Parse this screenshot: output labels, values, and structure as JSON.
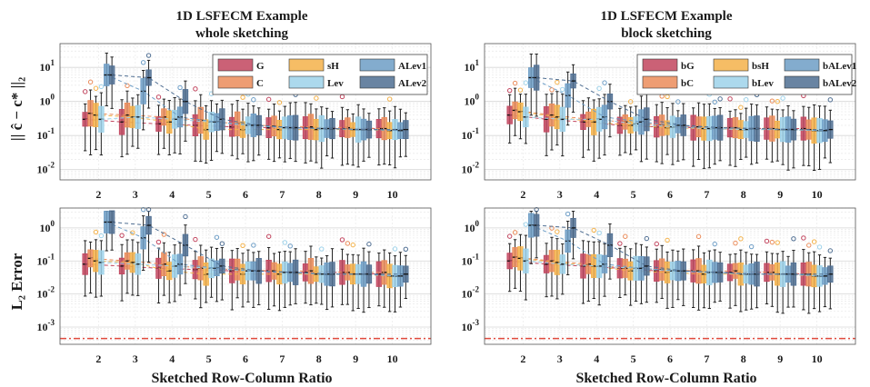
{
  "figure_title": "1D  LSFECM  Example",
  "colors": {
    "G": "#c2455e",
    "C": "#eb8c5a",
    "sH": "#f4b24a",
    "Lev": "#9dd2ea",
    "ALev1": "#6d9dc6",
    "ALev2": "#4f6e92",
    "reference_line": "#e04a3c"
  },
  "chart_data": [
    {
      "type": "box",
      "panel": "top-left",
      "title_line1": "1D  LSFECM  Example",
      "title_line2": "whole sketching",
      "ylabel": "|| ĉ − c* ||₂",
      "xlabel": "",
      "yscale": "log",
      "ylim": [
        0.005,
        50
      ],
      "x_ticks": [
        "2",
        "3",
        "4",
        "5",
        "6",
        "7",
        "8",
        "9",
        "10"
      ],
      "y_ticks": [
        "10^{-2}",
        "10^{-1}",
        "10^{0}",
        "10^{1}"
      ],
      "legend": [
        "G",
        "C",
        "sH",
        "Lev",
        "ALev1",
        "ALev2"
      ],
      "legend_position": "top-right",
      "grid": true,
      "series": [
        {
          "name": "G",
          "medians": [
            0.3,
            0.25,
            0.22,
            0.2,
            0.18,
            0.17,
            0.17,
            0.16,
            0.16
          ]
        },
        {
          "name": "C",
          "medians": [
            0.45,
            0.4,
            0.35,
            0.28,
            0.22,
            0.19,
            0.18,
            0.17,
            0.16
          ]
        },
        {
          "name": "sH",
          "medians": [
            0.4,
            0.35,
            0.25,
            0.15,
            0.15,
            0.15,
            0.15,
            0.15,
            0.14
          ]
        },
        {
          "name": "Lev",
          "medians": [
            0.3,
            0.35,
            0.3,
            0.25,
            0.2,
            0.17,
            0.16,
            0.15,
            0.15
          ]
        },
        {
          "name": "ALev1",
          "medians": [
            6.0,
            2.0,
            0.35,
            0.25,
            0.2,
            0.17,
            0.16,
            0.15,
            0.14
          ]
        },
        {
          "name": "ALev2",
          "medians": [
            6.0,
            5.0,
            1.0,
            0.3,
            0.2,
            0.17,
            0.16,
            0.15,
            0.15
          ]
        }
      ]
    },
    {
      "type": "box",
      "panel": "top-right",
      "title_line1": "1D  LSFECM  Example",
      "title_line2": "block sketching",
      "ylabel": "",
      "xlabel": "",
      "yscale": "log",
      "ylim": [
        0.005,
        50
      ],
      "x_ticks": [
        "2",
        "3",
        "4",
        "5",
        "6",
        "7",
        "8",
        "9",
        "10"
      ],
      "y_ticks": [
        "10^{-2}",
        "10^{-1}",
        "10^{0}",
        "10^{1}"
      ],
      "legend": [
        "bG",
        "bC",
        "bsH",
        "bLev",
        "bALev1",
        "bALev2"
      ],
      "legend_position": "top-right",
      "grid": true,
      "series": [
        {
          "name": "bG",
          "medians": [
            0.4,
            0.3,
            0.25,
            0.2,
            0.18,
            0.17,
            0.17,
            0.16,
            0.16
          ]
        },
        {
          "name": "bC",
          "medians": [
            0.55,
            0.4,
            0.3,
            0.25,
            0.2,
            0.18,
            0.17,
            0.16,
            0.15
          ]
        },
        {
          "name": "bsH",
          "medians": [
            0.5,
            0.35,
            0.25,
            0.2,
            0.17,
            0.16,
            0.15,
            0.15,
            0.14
          ]
        },
        {
          "name": "bLev",
          "medians": [
            0.35,
            0.3,
            0.3,
            0.22,
            0.18,
            0.16,
            0.15,
            0.15,
            0.14
          ]
        },
        {
          "name": "bALev1",
          "medians": [
            5.0,
            1.5,
            0.35,
            0.25,
            0.2,
            0.17,
            0.16,
            0.15,
            0.14
          ]
        },
        {
          "name": "bALev2",
          "medians": [
            5.0,
            4.0,
            1.0,
            0.3,
            0.2,
            0.17,
            0.16,
            0.15,
            0.15
          ]
        }
      ]
    },
    {
      "type": "box",
      "panel": "bottom-left",
      "ylabel": "L₂ Error",
      "xlabel": "Sketched Row-Column Ratio",
      "yscale": "log",
      "ylim": [
        0.0003,
        4
      ],
      "x_ticks": [
        "2",
        "3",
        "4",
        "5",
        "6",
        "7",
        "8",
        "9",
        "10"
      ],
      "y_ticks": [
        "10^{-3}",
        "10^{-2}",
        "10^{-1}",
        "10^{0}"
      ],
      "reference_line": 0.00045,
      "grid": true,
      "series": [
        {
          "name": "G",
          "medians": [
            0.08,
            0.07,
            0.06,
            0.055,
            0.05,
            0.05,
            0.045,
            0.045,
            0.04
          ]
        },
        {
          "name": "C",
          "medians": [
            0.12,
            0.1,
            0.08,
            0.06,
            0.055,
            0.05,
            0.05,
            0.045,
            0.045
          ]
        },
        {
          "name": "sH",
          "medians": [
            0.1,
            0.09,
            0.05,
            0.04,
            0.04,
            0.04,
            0.04,
            0.04,
            0.035
          ]
        },
        {
          "name": "Lev",
          "medians": [
            0.09,
            0.08,
            0.07,
            0.06,
            0.05,
            0.045,
            0.04,
            0.04,
            0.035
          ]
        },
        {
          "name": "ALev1",
          "medians": [
            1.5,
            0.5,
            0.08,
            0.06,
            0.05,
            0.045,
            0.04,
            0.04,
            0.035
          ]
        },
        {
          "name": "ALev2",
          "medians": [
            1.5,
            1.2,
            0.3,
            0.07,
            0.05,
            0.045,
            0.04,
            0.04,
            0.04
          ]
        }
      ]
    },
    {
      "type": "box",
      "panel": "bottom-right",
      "ylabel": "",
      "xlabel": "Sketched Row-Column Ratio",
      "yscale": "log",
      "ylim": [
        0.0003,
        4
      ],
      "x_ticks": [
        "2",
        "3",
        "4",
        "5",
        "6",
        "7",
        "8",
        "9",
        "10"
      ],
      "y_ticks": [
        "10^{-3}",
        "10^{-2}",
        "10^{-1}",
        "10^{0}"
      ],
      "reference_line": 0.00045,
      "grid": true,
      "series": [
        {
          "name": "bG",
          "medians": [
            0.1,
            0.08,
            0.07,
            0.06,
            0.05,
            0.05,
            0.045,
            0.045,
            0.04
          ]
        },
        {
          "name": "bC",
          "medians": [
            0.13,
            0.1,
            0.08,
            0.06,
            0.055,
            0.05,
            0.05,
            0.045,
            0.04
          ]
        },
        {
          "name": "bsH",
          "medians": [
            0.12,
            0.09,
            0.07,
            0.05,
            0.045,
            0.04,
            0.04,
            0.04,
            0.035
          ]
        },
        {
          "name": "bLev",
          "medians": [
            0.1,
            0.08,
            0.07,
            0.06,
            0.05,
            0.045,
            0.04,
            0.04,
            0.035
          ]
        },
        {
          "name": "bALev1",
          "medians": [
            1.2,
            0.4,
            0.08,
            0.06,
            0.05,
            0.045,
            0.04,
            0.04,
            0.035
          ]
        },
        {
          "name": "bALev2",
          "medians": [
            1.2,
            1.0,
            0.3,
            0.07,
            0.05,
            0.045,
            0.04,
            0.04,
            0.04
          ]
        }
      ]
    }
  ]
}
